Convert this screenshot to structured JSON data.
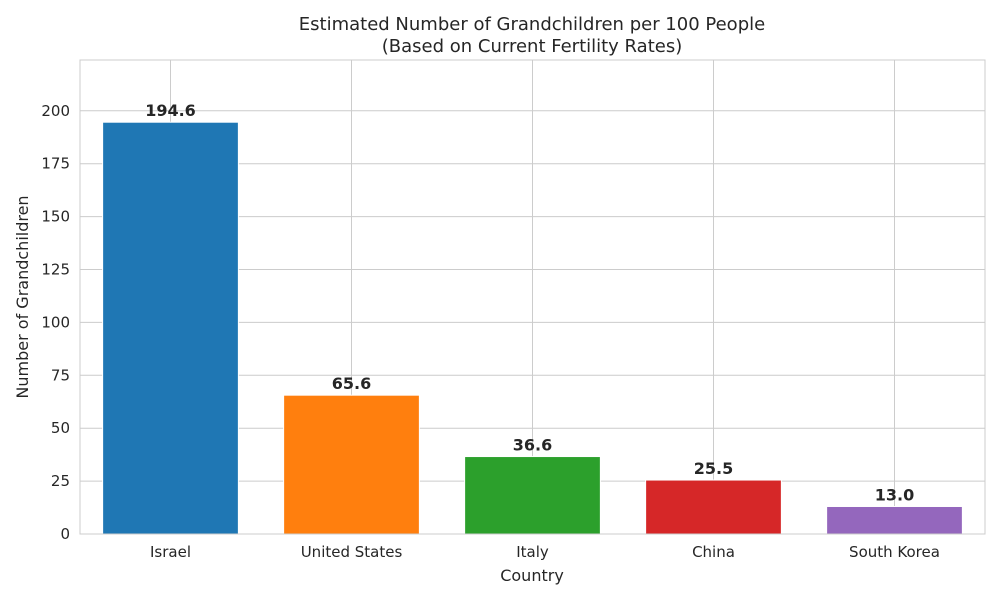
{
  "chart_data": {
    "type": "bar",
    "title": "Estimated Number of Grandchildren per 100 People",
    "subtitle": "(Based on Current Fertility Rates)",
    "xlabel": "Country",
    "ylabel": "Number of Grandchildren",
    "categories": [
      "Israel",
      "United States",
      "Italy",
      "China",
      "South Korea"
    ],
    "values": [
      194.6,
      65.6,
      36.6,
      25.5,
      13.0
    ],
    "value_labels": [
      "194.6",
      "65.6",
      "36.6",
      "25.5",
      "13.0"
    ],
    "colors": [
      "#1f77b4",
      "#ff7f0e",
      "#2ca02c",
      "#d62728",
      "#9467bd"
    ],
    "ylim": [
      0,
      224
    ],
    "yticks": [
      0,
      25,
      50,
      75,
      100,
      125,
      150,
      175,
      200
    ],
    "grid": true
  }
}
